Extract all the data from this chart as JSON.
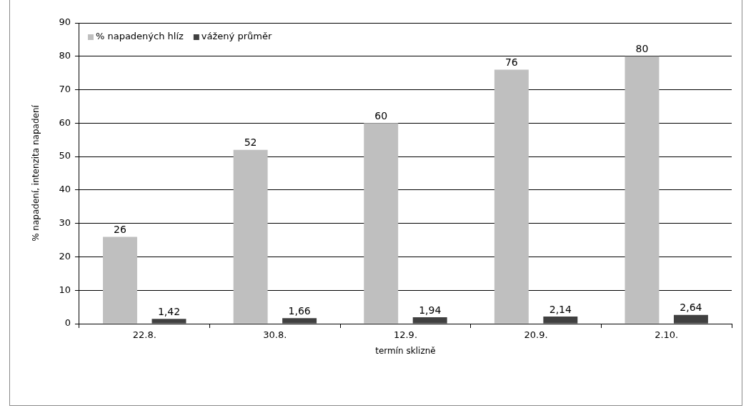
{
  "chart_data": {
    "type": "bar",
    "xlabel": "termín sklizně",
    "ylabel": "% napadení, intenzita napadení",
    "categories": [
      "22.8.",
      "30.8.",
      "12.9.",
      "20.9.",
      "2.10."
    ],
    "series": [
      {
        "name": "% napadených hlíz",
        "color": "#bfbfbf",
        "values": [
          26,
          52,
          60,
          76,
          80
        ],
        "value_labels": [
          "26",
          "52",
          "60",
          "76",
          "80"
        ]
      },
      {
        "name": "vážený průměr",
        "color": "#404040",
        "values": [
          1.42,
          1.66,
          1.94,
          2.14,
          2.64
        ],
        "value_labels": [
          "1,42",
          "1,66",
          "1,94",
          "2,14",
          "2,64"
        ]
      }
    ],
    "ylim": [
      0,
      90
    ],
    "yticks": [
      0,
      10,
      20,
      30,
      40,
      50,
      60,
      70,
      80,
      90
    ],
    "grid": "y",
    "legend": "top left"
  }
}
